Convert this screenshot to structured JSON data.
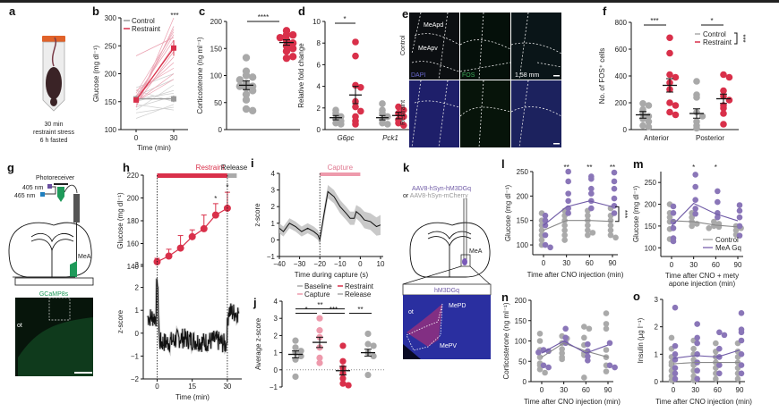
{
  "colors": {
    "control": "#a9a9a9",
    "restraint": "#d9304a",
    "restraint_light": "#e8a0ae",
    "capture": "#ee9aac",
    "gq": "#8a76b8",
    "gq_dark": "#6f5aa6",
    "gcamp": "#1f9a5a",
    "dapi": "#2a2a86"
  },
  "panels": {
    "a": {
      "label": "a",
      "caption_lines": [
        "30 min",
        "restraint stress",
        "6 h fasted"
      ]
    },
    "b": {
      "label": "b"
    },
    "c": {
      "label": "c"
    },
    "d": {
      "label": "d"
    },
    "e": {
      "label": "e",
      "row_labels": [
        "Control",
        "Restraint"
      ],
      "regions": [
        "MeApd",
        "MeApv"
      ],
      "channels": [
        "DAPI",
        "FOS"
      ],
      "scale": "1.58 mm"
    },
    "f": {
      "label": "f"
    },
    "g": {
      "label": "g",
      "photoreceiver": "Photoreceiver",
      "wl1": "405 nm",
      "wl2": "465 nm",
      "region": "MeA",
      "inset_title": "GCaMP8s",
      "inset_label": "ot"
    },
    "h": {
      "label": "h",
      "bar_restraint": "Restraint",
      "bar_release": "Release"
    },
    "i": {
      "label": "i",
      "bar_capture": "Capture"
    },
    "j": {
      "label": "j"
    },
    "k": {
      "label": "k",
      "virus1": "AAV8-hSyn-hM3DGq",
      "virus2_prefix": "or ",
      "virus2": "AAV8-hSyn-mCherry",
      "region": "MeA",
      "inset_title": "hM3DGq",
      "inset_labels": [
        "ot",
        "MePD",
        "MePV"
      ]
    },
    "l": {
      "label": "l"
    },
    "m": {
      "label": "m"
    },
    "n": {
      "label": "n"
    },
    "o": {
      "label": "o"
    }
  },
  "chart_data": [
    {
      "id": "b",
      "type": "line",
      "ylabel": "Glucose (mg dl⁻¹)",
      "xlabel": "Time (min)",
      "x": [
        0,
        30
      ],
      "ylim": [
        100,
        300
      ],
      "yticks": [
        100,
        150,
        200,
        250,
        300
      ],
      "legend": [
        "Control",
        "Restraint"
      ],
      "legend_position": "top-left",
      "significance": "***",
      "series": [
        {
          "name": "Control",
          "mean": [
            155,
            155
          ],
          "sem": [
            6,
            6
          ]
        },
        {
          "name": "Restraint",
          "mean": [
            153,
            246
          ],
          "sem": [
            5,
            14
          ]
        }
      ]
    },
    {
      "id": "c",
      "type": "scatter",
      "ylabel": "Corticosterone (ng ml⁻¹)",
      "ylim": [
        0,
        200
      ],
      "yticks": [
        0,
        50,
        100,
        150,
        200
      ],
      "significance": "****",
      "groups": [
        {
          "name": "Control",
          "mean": 82,
          "sem": 8,
          "points": [
            133,
            108,
            100,
            97,
            92,
            85,
            80,
            80,
            77,
            72,
            65,
            55,
            38,
            35
          ]
        },
        {
          "name": "Restraint",
          "mean": 161,
          "sem": 5,
          "points": [
            183,
            175,
            175,
            170,
            165,
            160,
            155,
            150,
            145,
            135,
            132
          ]
        }
      ]
    },
    {
      "id": "d",
      "type": "scatter",
      "ylabel": "Relative fold change",
      "ylim": [
        0,
        10
      ],
      "yticks": [
        0,
        2,
        4,
        6,
        8,
        10
      ],
      "categories": [
        "G6pc",
        "Pck1"
      ],
      "significance": [
        {
          "cat": "G6pc",
          "label": "*"
        }
      ],
      "groups": [
        {
          "cat": "G6pc",
          "name": "Control",
          "mean": 1.1,
          "sem": 0.2,
          "points": [
            1.8,
            1.5,
            1.2,
            1.0,
            0.8,
            0.6,
            0.5
          ]
        },
        {
          "cat": "G6pc",
          "name": "Restraint",
          "mean": 3.2,
          "sem": 0.8,
          "points": [
            8.1,
            6.8,
            4.1,
            3.9,
            2.6,
            2.1,
            1.7,
            1.2,
            0.8,
            0.5
          ]
        },
        {
          "cat": "Pck1",
          "name": "Control",
          "mean": 1.1,
          "sem": 0.2,
          "points": [
            2.4,
            1.8,
            1.5,
            1.2,
            0.9,
            0.6,
            0.5
          ]
        },
        {
          "cat": "Pck1",
          "name": "Restraint",
          "mean": 1.3,
          "sem": 0.3,
          "points": [
            2.1,
            1.8,
            1.5,
            1.2,
            0.9,
            0.6,
            0.4
          ]
        }
      ]
    },
    {
      "id": "f",
      "type": "scatter",
      "ylabel": "No. of FOS⁺ cells",
      "ylim": [
        0,
        800
      ],
      "yticks": [
        0,
        200,
        400,
        600,
        800
      ],
      "categories": [
        "Anterior",
        "Posterior"
      ],
      "legend": [
        "Control",
        "Restraint"
      ],
      "legend_position": "top-right",
      "significance": [
        "***",
        "*",
        "***"
      ],
      "groups": [
        {
          "cat": "Anterior",
          "name": "Control",
          "mean": 110,
          "sem": 25,
          "points": [
            195,
            180,
            150,
            120,
            100,
            80,
            60,
            30,
            20
          ]
        },
        {
          "cat": "Anterior",
          "name": "Restraint",
          "mean": 330,
          "sem": 50,
          "points": [
            685,
            570,
            410,
            390,
            350,
            300,
            200,
            180,
            130,
            110
          ]
        },
        {
          "cat": "Posterior",
          "name": "Control",
          "mean": 120,
          "sem": 35,
          "points": [
            360,
            260,
            240,
            130,
            100,
            60,
            30,
            10
          ]
        },
        {
          "cat": "Posterior",
          "name": "Restraint",
          "mean": 230,
          "sem": 35,
          "points": [
            410,
            390,
            290,
            250,
            220,
            180,
            160,
            120,
            40
          ]
        }
      ]
    },
    {
      "id": "h_top",
      "type": "line",
      "ylabel": "Glucose (mg dl⁻¹)",
      "ylim": [
        140,
        220
      ],
      "yticks": [
        140,
        160,
        180,
        200,
        220
      ],
      "x": [
        0,
        5,
        10,
        15,
        20,
        25,
        30
      ],
      "y": [
        144,
        149,
        156,
        166,
        173,
        185,
        191
      ],
      "err": [
        3,
        6,
        11,
        6,
        12,
        10,
        14
      ],
      "significance": [
        null,
        null,
        null,
        null,
        null,
        "*",
        "*"
      ]
    },
    {
      "id": "h_bottom",
      "type": "line",
      "ylabel": "z-score",
      "xlabel": "Time (min)",
      "xlim": [
        -4,
        35
      ],
      "xticks": [
        0,
        15,
        30
      ],
      "ylim": [
        -2,
        3
      ],
      "yticks": [
        -2,
        -1,
        0,
        1,
        2,
        3
      ],
      "x": [
        -4,
        -2,
        -0.5,
        0,
        1,
        5,
        10,
        15,
        20,
        25,
        29.5,
        30.5,
        32,
        35
      ],
      "y": [
        0.7,
        0.7,
        0.7,
        2.6,
        -0.4,
        -0.4,
        -0.2,
        -0.3,
        -0.4,
        -0.3,
        -0.5,
        1.0,
        0.9,
        0.9
      ]
    },
    {
      "id": "i",
      "type": "line",
      "ylabel": "z-score",
      "xlabel": "Time during capture (s)",
      "xlim": [
        -40,
        10
      ],
      "xticks": [
        -40,
        -30,
        -20,
        -10,
        0,
        10
      ],
      "ylim": [
        -1,
        4
      ],
      "yticks": [
        -1,
        0,
        1,
        2,
        3,
        4
      ],
      "x": [
        -40,
        -38,
        -35,
        -32,
        -29,
        -26,
        -23,
        -21,
        -20,
        -18,
        -16,
        -13,
        -10,
        -7,
        -5,
        -3,
        -2,
        0,
        2,
        5,
        8,
        10
      ],
      "y": [
        0.7,
        0.5,
        1.0,
        0.8,
        0.5,
        0.7,
        0.5,
        0.3,
        0.0,
        1.5,
        2.9,
        2.6,
        2.0,
        1.6,
        1.3,
        1.3,
        1.7,
        1.5,
        1.2,
        1.1,
        0.8,
        0.9
      ],
      "band": [
        0.3,
        0.3,
        0.3,
        0.3,
        0.3,
        0.3,
        0.3,
        0.3,
        0.3,
        0.4,
        0.4,
        0.4,
        0.4,
        0.4,
        0.4,
        0.4,
        0.4,
        0.45,
        0.5,
        0.5,
        0.55,
        0.6
      ]
    },
    {
      "id": "j",
      "type": "scatter",
      "ylabel": "Average z-score",
      "ylim": [
        -1,
        4
      ],
      "yticks": [
        -1,
        0,
        1,
        2,
        3,
        4
      ],
      "legend": [
        "Baseline",
        "Restraint",
        "Capture",
        "Release"
      ],
      "legend_position": "top",
      "significance": [
        {
          "pair": [
            "Baseline",
            "Restraint"
          ],
          "label": "**"
        },
        {
          "pair": [
            "Baseline",
            "Capture"
          ],
          "label": "*"
        },
        {
          "pair": [
            "Capture",
            "Restraint"
          ],
          "label": "***"
        },
        {
          "pair": [
            "Restraint",
            "Release"
          ],
          "label": "**"
        }
      ],
      "groups": [
        {
          "name": "Baseline",
          "mean": 0.9,
          "sem": 0.2,
          "points": [
            1.7,
            1.3,
            1.1,
            1.0,
            0.8,
            0.6,
            -0.4
          ]
        },
        {
          "name": "Capture",
          "mean": 1.6,
          "sem": 0.3,
          "points": [
            3.0,
            2.3,
            1.9,
            1.3,
            0.7,
            0.4
          ]
        },
        {
          "name": "Restraint",
          "mean": -0.05,
          "sem": 0.25,
          "points": [
            1.4,
            0.5,
            0.1,
            -0.2,
            -0.5,
            -0.8,
            -0.9
          ]
        },
        {
          "name": "Release",
          "mean": 1.0,
          "sem": 0.2,
          "points": [
            2.1,
            1.5,
            1.4,
            1.0,
            0.8,
            -0.3
          ]
        }
      ]
    },
    {
      "id": "l",
      "type": "line",
      "ylabel": "Glucose (mg dl⁻¹)",
      "xlabel": "Time after CNO injection (min)",
      "x": [
        0,
        30,
        60,
        90
      ],
      "ylim": [
        80,
        250
      ],
      "yticks": [
        100,
        150,
        200,
        250
      ],
      "significance": [
        "",
        "**",
        "**",
        "**"
      ],
      "overall_sig": "***",
      "series": [
        {
          "name": "Control",
          "mean": [
            130,
            150,
            150,
            148
          ]
        },
        {
          "name": "MeA Gq",
          "mean": [
            140,
            178,
            190,
            178
          ]
        }
      ],
      "points": {
        "Control": [
          [
            165,
            150,
            140,
            130,
            120,
            110,
            100
          ],
          [
            170,
            160,
            150,
            140,
            130,
            120,
            110
          ],
          [
            170,
            160,
            150,
            140,
            130,
            125,
            120
          ],
          [
            175,
            160,
            150,
            140,
            130,
            120,
            115
          ]
        ],
        "MeA Gq": [
          [
            160,
            150,
            140,
            120,
            100,
            95
          ],
          [
            250,
            230,
            205,
            190,
            175,
            165
          ],
          [
            240,
            235,
            215,
            205,
            190,
            175
          ],
          [
            248,
            230,
            215,
            195,
            180,
            165
          ]
        ]
      }
    },
    {
      "id": "m",
      "type": "line",
      "ylabel": "Glucose (mg dl⁻¹)",
      "xlabel": "Time after CNO + metyrapone injection (min)",
      "x": [
        0,
        30,
        60,
        90
      ],
      "ylim": [
        80,
        275
      ],
      "yticks": [
        100,
        150,
        200,
        250
      ],
      "legend": [
        "Control",
        "MeA Gq"
      ],
      "legend_position": "bottom-right",
      "significance": [
        "",
        "*",
        "*",
        ""
      ],
      "series": [
        {
          "name": "Control",
          "mean": [
            162,
            160,
            152,
            148
          ]
        },
        {
          "name": "MeA Gq",
          "mean": [
            150,
            202,
            178,
            162
          ]
        }
      ],
      "points": {
        "Control": [
          [
            200,
            180,
            170,
            160,
            143,
            120
          ],
          [
            180,
            170,
            160,
            155,
            150
          ],
          [
            160,
            155,
            150,
            148,
            145
          ],
          [
            150,
            145,
            140,
            130
          ]
        ],
        "MeA Gq": [
          [
            195,
            180,
            160,
            145,
            122,
            115
          ],
          [
            268,
            240,
            210,
            190,
            178
          ],
          [
            230,
            205,
            180,
            170
          ],
          [
            198,
            185,
            170,
            150,
            128
          ]
        ]
      }
    },
    {
      "id": "n",
      "type": "line",
      "ylabel": "Corticosterone (ng ml⁻¹)",
      "xlabel": "Time after CNO injection (min)",
      "x": [
        0,
        30,
        60,
        90
      ],
      "ylim": [
        0,
        200
      ],
      "yticks": [
        0,
        50,
        100,
        150,
        200
      ],
      "series": [
        {
          "name": "Control",
          "mean": [
            60,
            95,
            75,
            60
          ]
        },
        {
          "name": "MeA Gq",
          "mean": [
            70,
            100,
            70,
            90
          ]
        }
      ],
      "points": {
        "Control": [
          [
            118,
            100,
            78,
            60,
            45,
            40,
            30,
            22
          ],
          [
            112,
            106,
            95,
            80,
            70,
            60,
            55
          ],
          [
            135,
            130,
            108,
            90,
            70,
            65,
            10
          ],
          [
            168,
            142,
            130,
            78,
            60,
            40,
            25
          ]
        ],
        "MeA Gq": [
          [
            78,
            75,
            72,
            40,
            35
          ],
          [
            130,
            108,
            95
          ],
          [
            92,
            75,
            52,
            62
          ],
          [
            95,
            40,
            35
          ]
        ]
      }
    },
    {
      "id": "o",
      "type": "line",
      "ylabel": "Insulin (µg l⁻¹)",
      "xlabel": "Time after CNO injection (min)",
      "x": [
        0,
        30,
        60,
        90
      ],
      "ylim": [
        0,
        3
      ],
      "yticks": [
        0,
        1,
        2,
        3
      ],
      "series": [
        {
          "name": "Control",
          "mean": [
            0.65,
            0.7,
            0.7,
            0.7
          ]
        },
        {
          "name": "MeA Gq",
          "mean": [
            0.85,
            0.95,
            0.9,
            1.15
          ]
        }
      ],
      "points": {
        "Control": [
          [
            1.6,
            1.2,
            0.9,
            0.7,
            0.6,
            0.4,
            0.2,
            0.05
          ],
          [
            1.5,
            1.2,
            1.0,
            0.8,
            0.6,
            0.4,
            0.2,
            0.05
          ],
          [
            1.4,
            1.1,
            0.9,
            0.7,
            0.5,
            0.3,
            0.1
          ],
          [
            1.4,
            1.1,
            0.9,
            0.7,
            0.5,
            0.3,
            0.1
          ]
        ],
        "MeA Gq": [
          [
            2.7,
            1.3,
            1.0,
            0.8,
            0.5,
            0.3,
            0.1
          ],
          [
            2.1,
            1.6,
            1.4,
            1.0,
            0.7,
            0.4,
            0.1
          ],
          [
            1.8,
            1.7,
            1.2,
            0.9,
            0.6,
            0.3
          ],
          [
            2.5,
            1.9,
            1.8,
            1.5,
            1.0,
            0.6,
            0.3
          ]
        ]
      }
    }
  ]
}
